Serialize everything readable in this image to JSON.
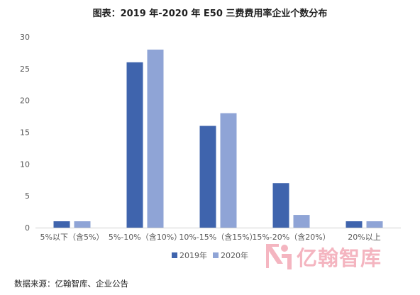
{
  "title": "图表：2019 年-2020 年 E50 三费费用率企业个数分布",
  "source": "数据来源：亿翰智库、企业公告",
  "watermark": "亿翰智库",
  "chart_data": {
    "type": "bar",
    "categories": [
      "5%以下（含5%）",
      "5%-10%（含10%）",
      "10%-15%（含15%）",
      "15%-20%（含20%）",
      "20%以上"
    ],
    "series": [
      {
        "name": "2019年",
        "values": [
          1,
          26,
          16,
          7,
          1
        ],
        "color": "#3f64ad"
      },
      {
        "name": "2020年",
        "values": [
          1,
          28,
          18,
          2,
          1
        ],
        "color": "#8fa4d6"
      }
    ],
    "ylim": [
      0,
      30
    ],
    "yticks": [
      0,
      5,
      10,
      15,
      20,
      25,
      30
    ],
    "grid": false,
    "legend_position": "bottom",
    "xlabel": "",
    "ylabel": ""
  }
}
